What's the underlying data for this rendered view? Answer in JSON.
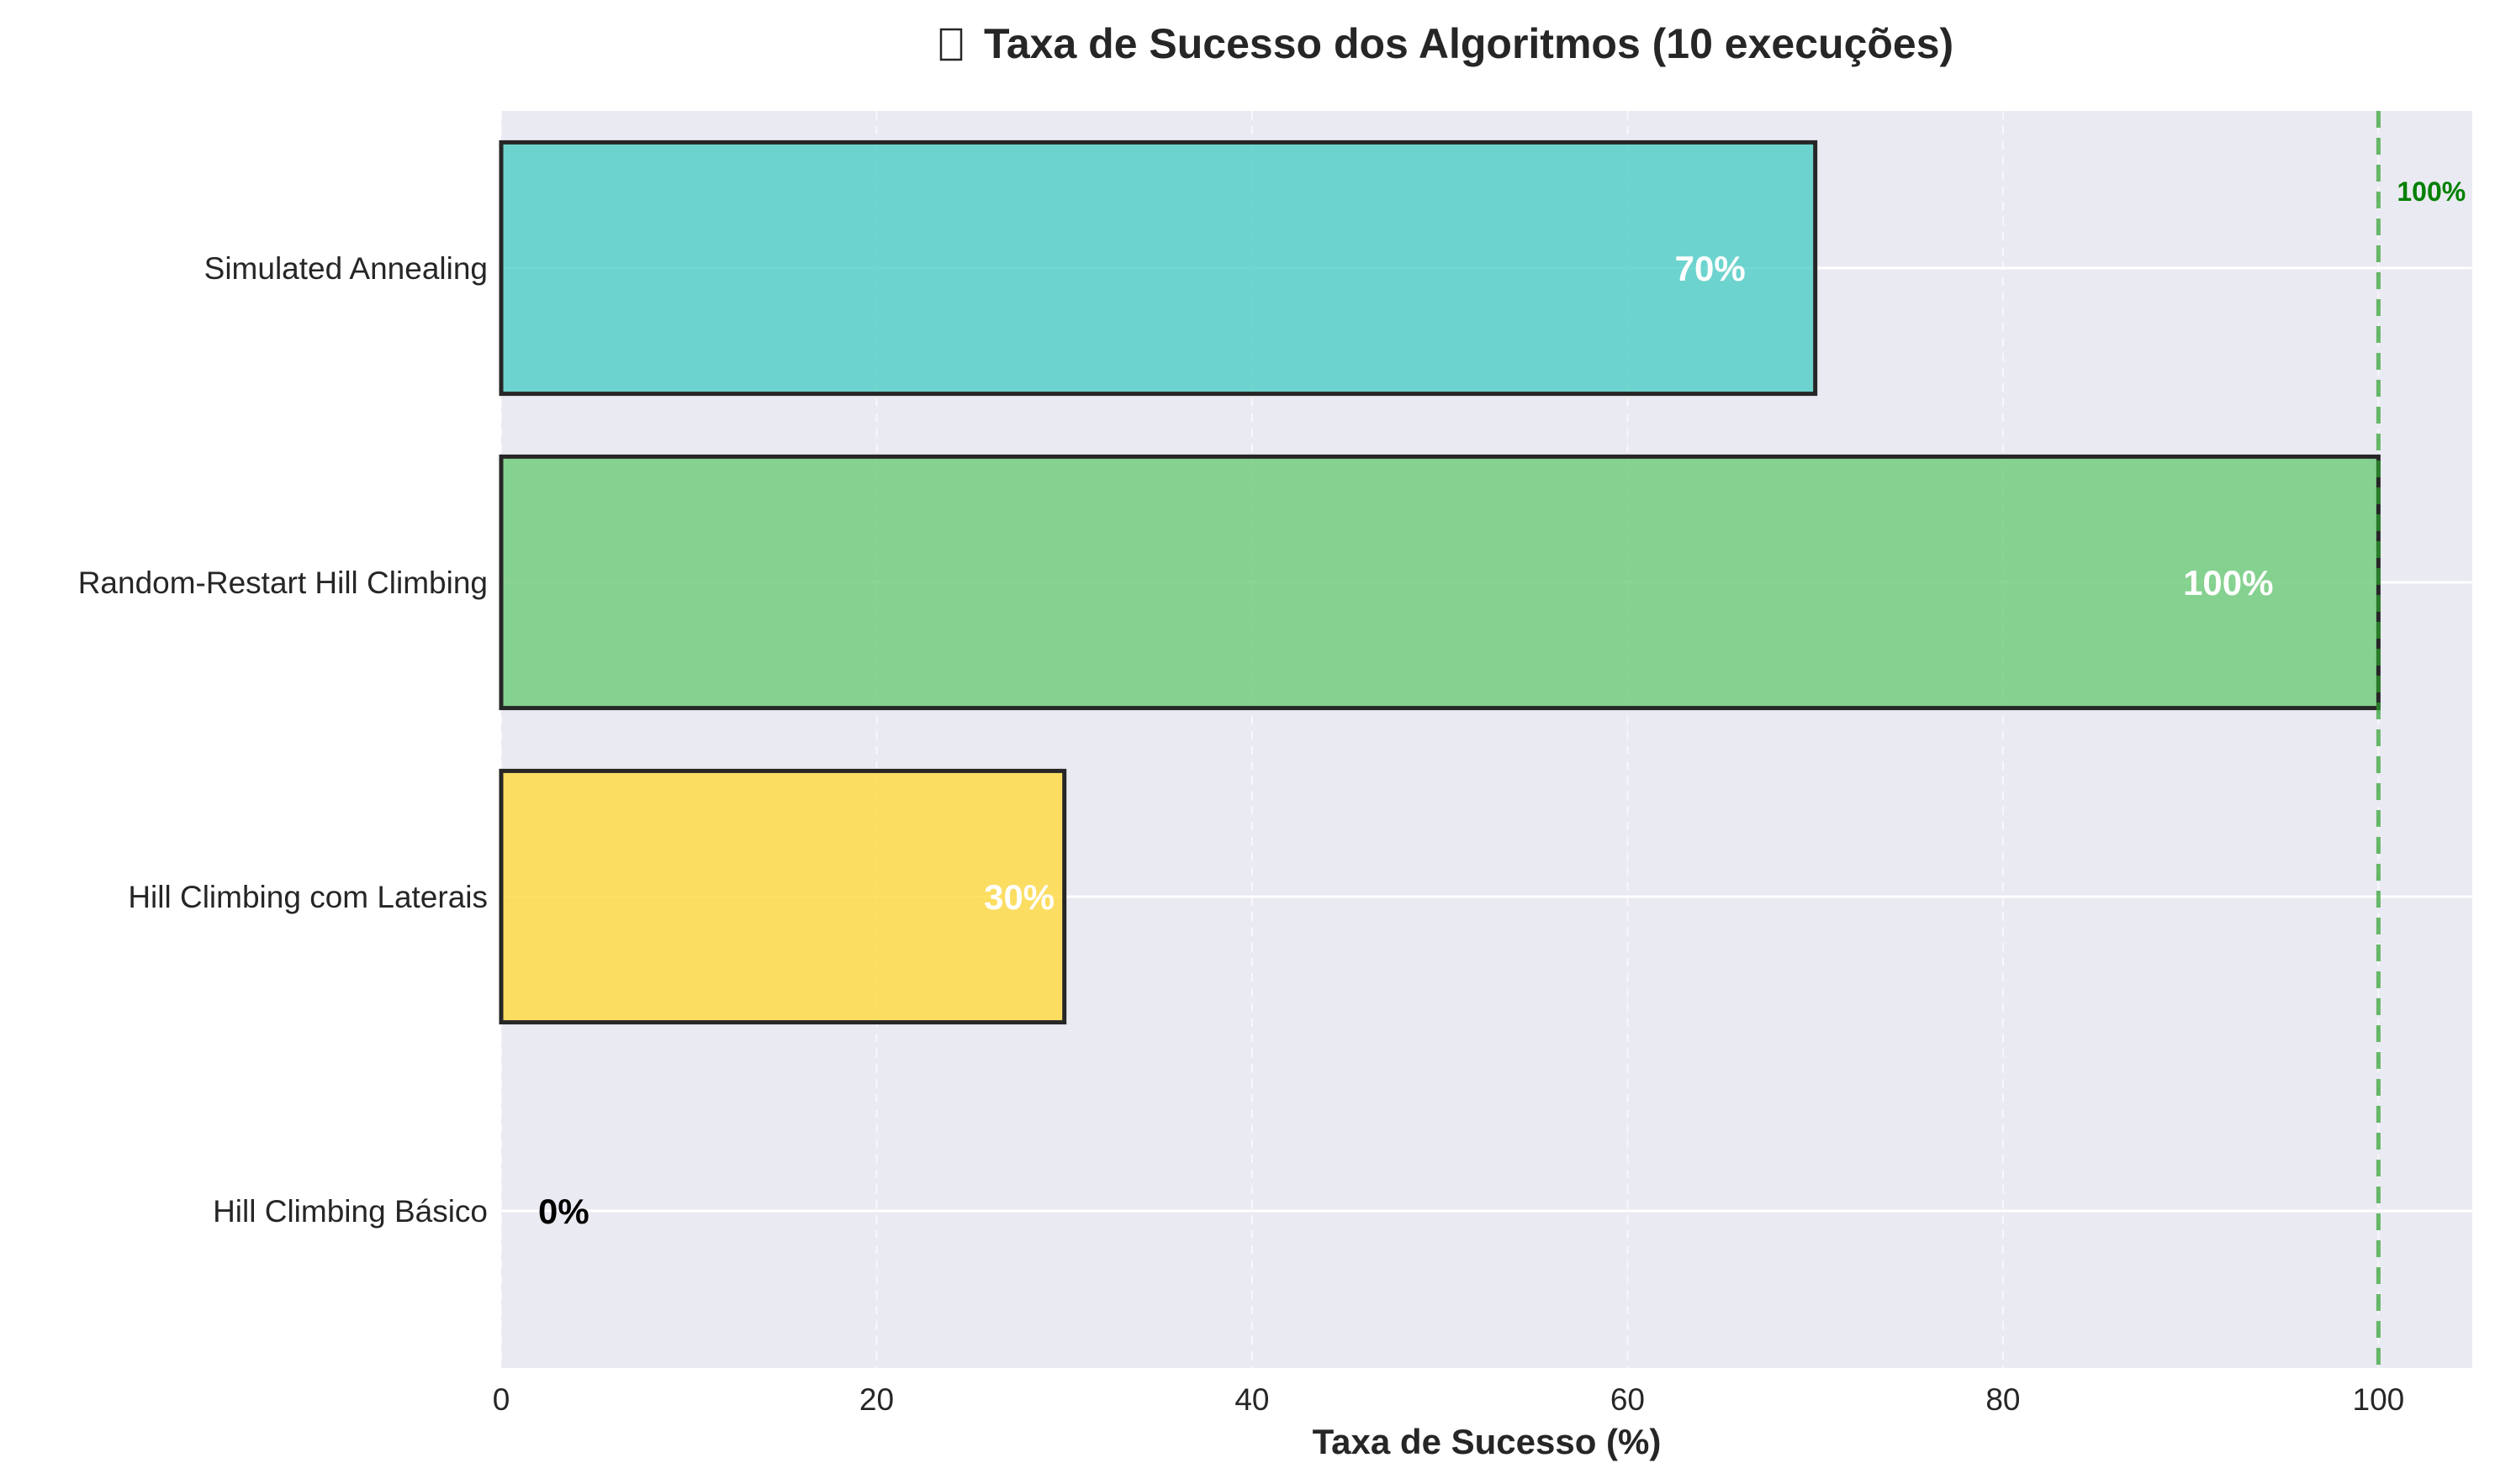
{
  "chart_data": {
    "type": "bar",
    "orientation": "horizontal",
    "title": "Taxa de Sucesso dos Algoritmos (10 execuções)",
    "title_icon": "missing-glyph-box",
    "xlabel": "Taxa de Sucesso (%)",
    "ylabel": "",
    "xlim": [
      0,
      105
    ],
    "xticks": [
      0,
      20,
      40,
      60,
      80,
      100
    ],
    "xtick_labels": [
      "0",
      "20",
      "40",
      "60",
      "80",
      "100"
    ],
    "grid": true,
    "categories": [
      "Hill Climbing Básico",
      "Hill Climbing com Laterais",
      "Random-Restart Hill Climbing",
      "Simulated Annealing"
    ],
    "values": [
      0,
      30,
      100,
      70
    ],
    "data_labels": [
      "0%",
      "30%",
      "100%",
      "70%"
    ],
    "bar_colors": [
      "#FF6B6B",
      "#FFD93D",
      "#6BCB77",
      "#4ECDC4"
    ],
    "bar_edge_color": "#262626",
    "plot_background": "#EAEAF2",
    "reference_line": {
      "x": 100,
      "label": "100%",
      "color": "#2CA02C",
      "style": "dashed"
    }
  }
}
